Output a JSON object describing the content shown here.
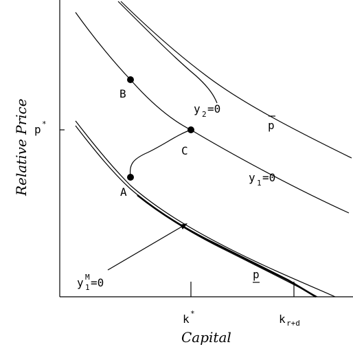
{
  "axes": {
    "x_title": "Capital",
    "y_title": "Relative Price"
  },
  "ticks": {
    "p_star": {
      "base": "p",
      "sup": "*"
    },
    "k_star": {
      "base": "k",
      "sup": "*"
    },
    "k_rd": {
      "base": "k",
      "sub": "r+d"
    }
  },
  "points": {
    "A": "A",
    "B": "B",
    "C": "C"
  },
  "curve_labels": {
    "y1": {
      "base": "y",
      "sub": "1",
      "rest": "=0"
    },
    "y2": {
      "base": "y",
      "sub": "2",
      "rest": "=0"
    },
    "y1M": {
      "base": "y",
      "sup": "M",
      "sub": "1",
      "rest": "=0"
    },
    "p_upper": "p",
    "p_lower": "p"
  },
  "colors": {
    "ink": "#000000",
    "background": "#ffffff"
  }
}
